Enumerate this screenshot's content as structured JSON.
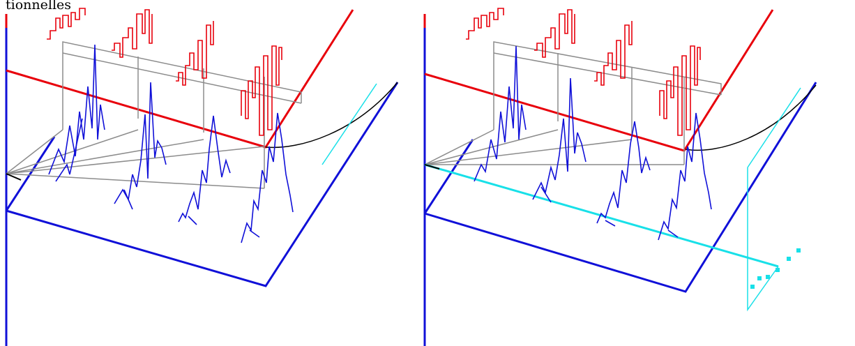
{
  "caption": "tionnelles",
  "colors": {
    "red": "#e8000b",
    "red_trace": "#e8000b",
    "blue": "#1010d8",
    "grey": "#8c8c8c",
    "black": "#000000",
    "cyan": "#18e0e8"
  },
  "panels": [
    {
      "name": "panel-left",
      "has_cross_section": false
    },
    {
      "name": "panel-right",
      "has_cross_section": true
    }
  ]
}
